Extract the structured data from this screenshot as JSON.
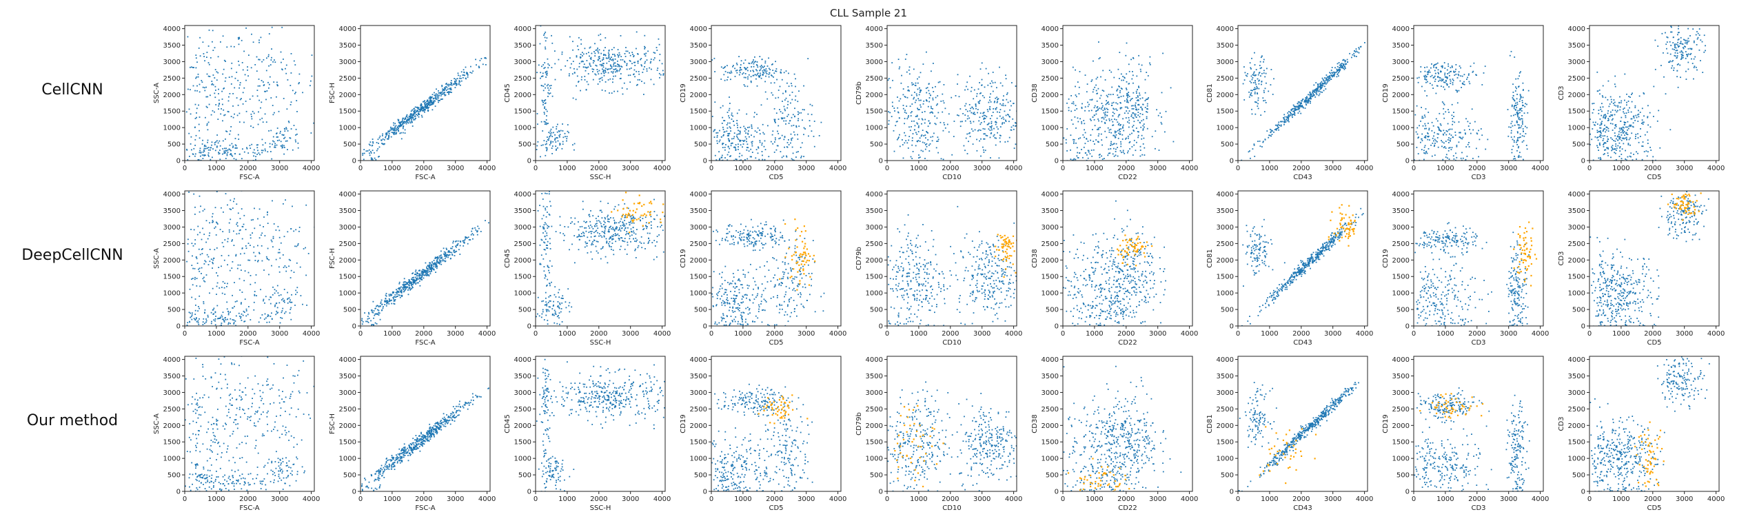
{
  "figure": {
    "title": "CLL Sample 21",
    "rows": [
      "CellCNN",
      "DeepCellCNN",
      "Our method"
    ]
  },
  "colors": {
    "background_cells": "#1f77b4",
    "selected_cells": "#ffa500"
  },
  "chart_data": {
    "type": "scatter",
    "title": "CLL Sample 21",
    "xlim": [
      0,
      4096
    ],
    "ylim": [
      0,
      4096
    ],
    "ticks": [
      0,
      500,
      1000,
      1500,
      2000,
      2500,
      3000,
      3500,
      4000
    ],
    "xtick_labels": [
      "0",
      "1000",
      "2000",
      "3000",
      "4000"
    ],
    "ytick_labels": [
      "0",
      "500",
      "1000",
      "1500",
      "2000",
      "2500",
      "3000",
      "3500",
      "4000"
    ],
    "grid": false,
    "series": [
      {
        "color": "#1f77b4"
      },
      {
        "color": "#ffa500"
      }
    ],
    "panels": [
      {
        "xlabel": "FSC-A",
        "ylabel": "SSC-A"
      },
      {
        "xlabel": "FSC-A",
        "ylabel": "FSC-H"
      },
      {
        "xlabel": "SSC-H",
        "ylabel": "CD45"
      },
      {
        "xlabel": "CD5",
        "ylabel": "CD19"
      },
      {
        "xlabel": "CD10",
        "ylabel": "CD79b"
      },
      {
        "xlabel": "CD22",
        "ylabel": "CD38"
      },
      {
        "xlabel": "CD43",
        "ylabel": "CD81"
      },
      {
        "xlabel": "CD3",
        "ylabel": "CD19"
      },
      {
        "xlabel": "CD5",
        "ylabel": "CD3"
      }
    ],
    "populations": [
      [
        {
          "cx": 800,
          "cy": 1800,
          "sx": 600,
          "sy": 1300,
          "w": 0.35
        },
        {
          "cx": 2500,
          "cy": 2300,
          "sx": 900,
          "sy": 900,
          "w": 0.35
        },
        {
          "cx": 1400,
          "cy": 300,
          "sx": 900,
          "sy": 150,
          "w": 0.2
        },
        {
          "cx": 3100,
          "cy": 700,
          "sx": 300,
          "sy": 200,
          "w": 0.1
        }
      ],
      [
        {
          "cx": 1800,
          "cy": 1500,
          "sx": 900,
          "sy": 600,
          "w": 1.0,
          "diag": 0.75
        }
      ],
      [
        {
          "cx": 2400,
          "cy": 2900,
          "sx": 900,
          "sy": 350,
          "w": 0.7
        },
        {
          "cx": 300,
          "cy": 2500,
          "sx": 100,
          "sy": 900,
          "w": 0.15
        },
        {
          "cx": 500,
          "cy": 600,
          "sx": 250,
          "sy": 250,
          "w": 0.15
        }
      ],
      [
        {
          "cx": 1300,
          "cy": 2750,
          "sx": 500,
          "sy": 200,
          "w": 0.3
        },
        {
          "cx": 800,
          "cy": 700,
          "sx": 500,
          "sy": 500,
          "w": 0.4
        },
        {
          "cx": 2400,
          "cy": 1200,
          "sx": 400,
          "sy": 700,
          "w": 0.3
        }
      ],
      [
        {
          "cx": 900,
          "cy": 1400,
          "sx": 500,
          "sy": 800,
          "w": 0.5
        },
        {
          "cx": 3200,
          "cy": 1500,
          "sx": 500,
          "sy": 600,
          "w": 0.5
        }
      ],
      [
        {
          "cx": 1400,
          "cy": 1300,
          "sx": 700,
          "sy": 700,
          "w": 0.6
        },
        {
          "cx": 2200,
          "cy": 1800,
          "sx": 400,
          "sy": 700,
          "w": 0.3
        },
        {
          "cx": 1200,
          "cy": 300,
          "sx": 600,
          "sy": 250,
          "w": 0.1
        }
      ],
      [
        {
          "cx": 2300,
          "cy": 2000,
          "sx": 800,
          "sy": 500,
          "w": 0.8,
          "diag": 0.9
        },
        {
          "cx": 600,
          "cy": 2300,
          "sx": 200,
          "sy": 400,
          "w": 0.2
        }
      ],
      [
        {
          "cx": 1000,
          "cy": 2600,
          "sx": 500,
          "sy": 200,
          "w": 0.3
        },
        {
          "cx": 900,
          "cy": 800,
          "sx": 600,
          "sy": 500,
          "w": 0.4
        },
        {
          "cx": 3250,
          "cy": 1200,
          "sx": 150,
          "sy": 700,
          "w": 0.3
        }
      ],
      [
        {
          "cx": 2900,
          "cy": 3400,
          "sx": 350,
          "sy": 350,
          "w": 0.3
        },
        {
          "cx": 900,
          "cy": 1000,
          "sx": 600,
          "sy": 600,
          "w": 0.7
        }
      ]
    ],
    "highlights": [
      [],
      [
        {
          "panel": 2,
          "cx": 3300,
          "cy": 3500,
          "sx": 400,
          "sy": 250,
          "n": 50
        },
        {
          "panel": 3,
          "cx": 2800,
          "cy": 2200,
          "sx": 200,
          "sy": 500,
          "n": 60
        },
        {
          "panel": 4,
          "cx": 3700,
          "cy": 2400,
          "sx": 150,
          "sy": 300,
          "n": 60
        },
        {
          "panel": 5,
          "cx": 2200,
          "cy": 2400,
          "sx": 250,
          "sy": 200,
          "n": 60
        },
        {
          "panel": 6,
          "cx": 3400,
          "cy": 3000,
          "sx": 200,
          "sy": 300,
          "n": 60
        },
        {
          "panel": 7,
          "cx": 3500,
          "cy": 2200,
          "sx": 150,
          "sy": 500,
          "n": 60
        },
        {
          "panel": 8,
          "cx": 3000,
          "cy": 3700,
          "sx": 200,
          "sy": 200,
          "n": 60
        }
      ],
      [
        {
          "panel": 3,
          "cx": 2100,
          "cy": 2500,
          "sx": 300,
          "sy": 200,
          "n": 50
        },
        {
          "panel": 4,
          "cx": 700,
          "cy": 1500,
          "sx": 400,
          "sy": 600,
          "n": 50
        },
        {
          "panel": 5,
          "cx": 1100,
          "cy": 400,
          "sx": 400,
          "sy": 250,
          "n": 50
        },
        {
          "panel": 6,
          "cx": 1500,
          "cy": 1200,
          "sx": 400,
          "sy": 400,
          "n": 40
        },
        {
          "panel": 7,
          "cx": 1200,
          "cy": 2600,
          "sx": 400,
          "sy": 200,
          "n": 50
        },
        {
          "panel": 8,
          "cx": 1900,
          "cy": 1000,
          "sx": 200,
          "sy": 500,
          "n": 60
        }
      ]
    ]
  }
}
